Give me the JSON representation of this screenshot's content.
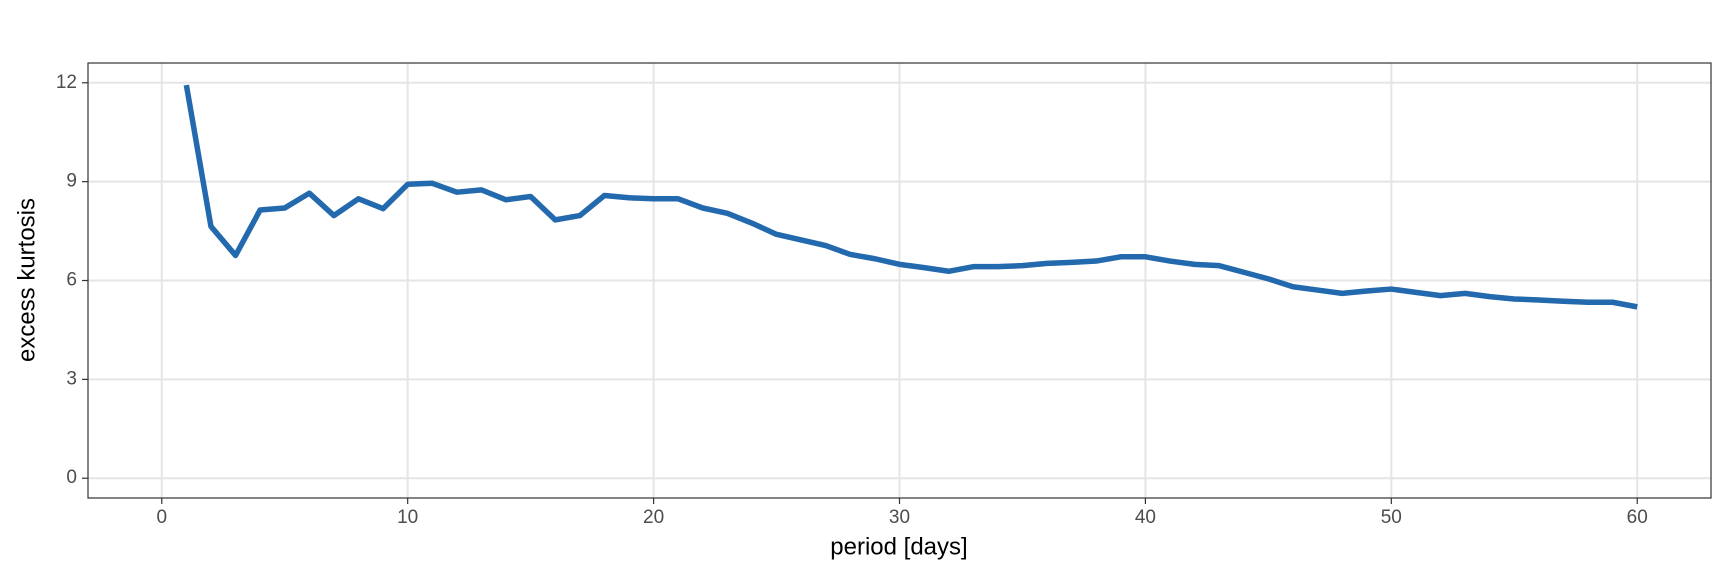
{
  "chart_data": {
    "type": "line",
    "x_label": "period [days]",
    "y_label": "excess kurtosis",
    "x": [
      1,
      2,
      3,
      4,
      5,
      6,
      7,
      8,
      9,
      10,
      11,
      12,
      13,
      14,
      15,
      16,
      17,
      18,
      19,
      20,
      21,
      22,
      23,
      24,
      25,
      26,
      27,
      28,
      29,
      30,
      31,
      32,
      33,
      34,
      35,
      36,
      37,
      38,
      39,
      40,
      41,
      42,
      43,
      44,
      45,
      46,
      47,
      48,
      49,
      50,
      51,
      52,
      53,
      54,
      55,
      56,
      57,
      58,
      59,
      60
    ],
    "series": [
      {
        "color": "#2369ad",
        "values": [
          11.93,
          7.64,
          6.76,
          8.14,
          8.2,
          8.65,
          7.97,
          8.48,
          8.18,
          8.92,
          8.95,
          8.68,
          8.75,
          8.45,
          8.55,
          7.84,
          7.97,
          8.58,
          8.51,
          8.48,
          8.48,
          8.2,
          8.04,
          7.74,
          7.4,
          7.23,
          7.06,
          6.79,
          6.66,
          6.49,
          6.39,
          6.28,
          6.42,
          6.42,
          6.45,
          6.52,
          6.55,
          6.59,
          6.72,
          6.72,
          6.59,
          6.49,
          6.45,
          6.25,
          6.05,
          5.81,
          5.71,
          5.61,
          5.68,
          5.74,
          5.64,
          5.54,
          5.61,
          5.51,
          5.44,
          5.41,
          5.37,
          5.34,
          5.34,
          5.2
        ]
      }
    ],
    "xlim": [
      -3,
      63
    ],
    "xticks": [
      0,
      10,
      20,
      30,
      40,
      50,
      60
    ],
    "ylim": [
      -0.6,
      12.6
    ],
    "yticks": [
      0,
      3,
      6,
      9,
      12
    ],
    "grid": true
  }
}
